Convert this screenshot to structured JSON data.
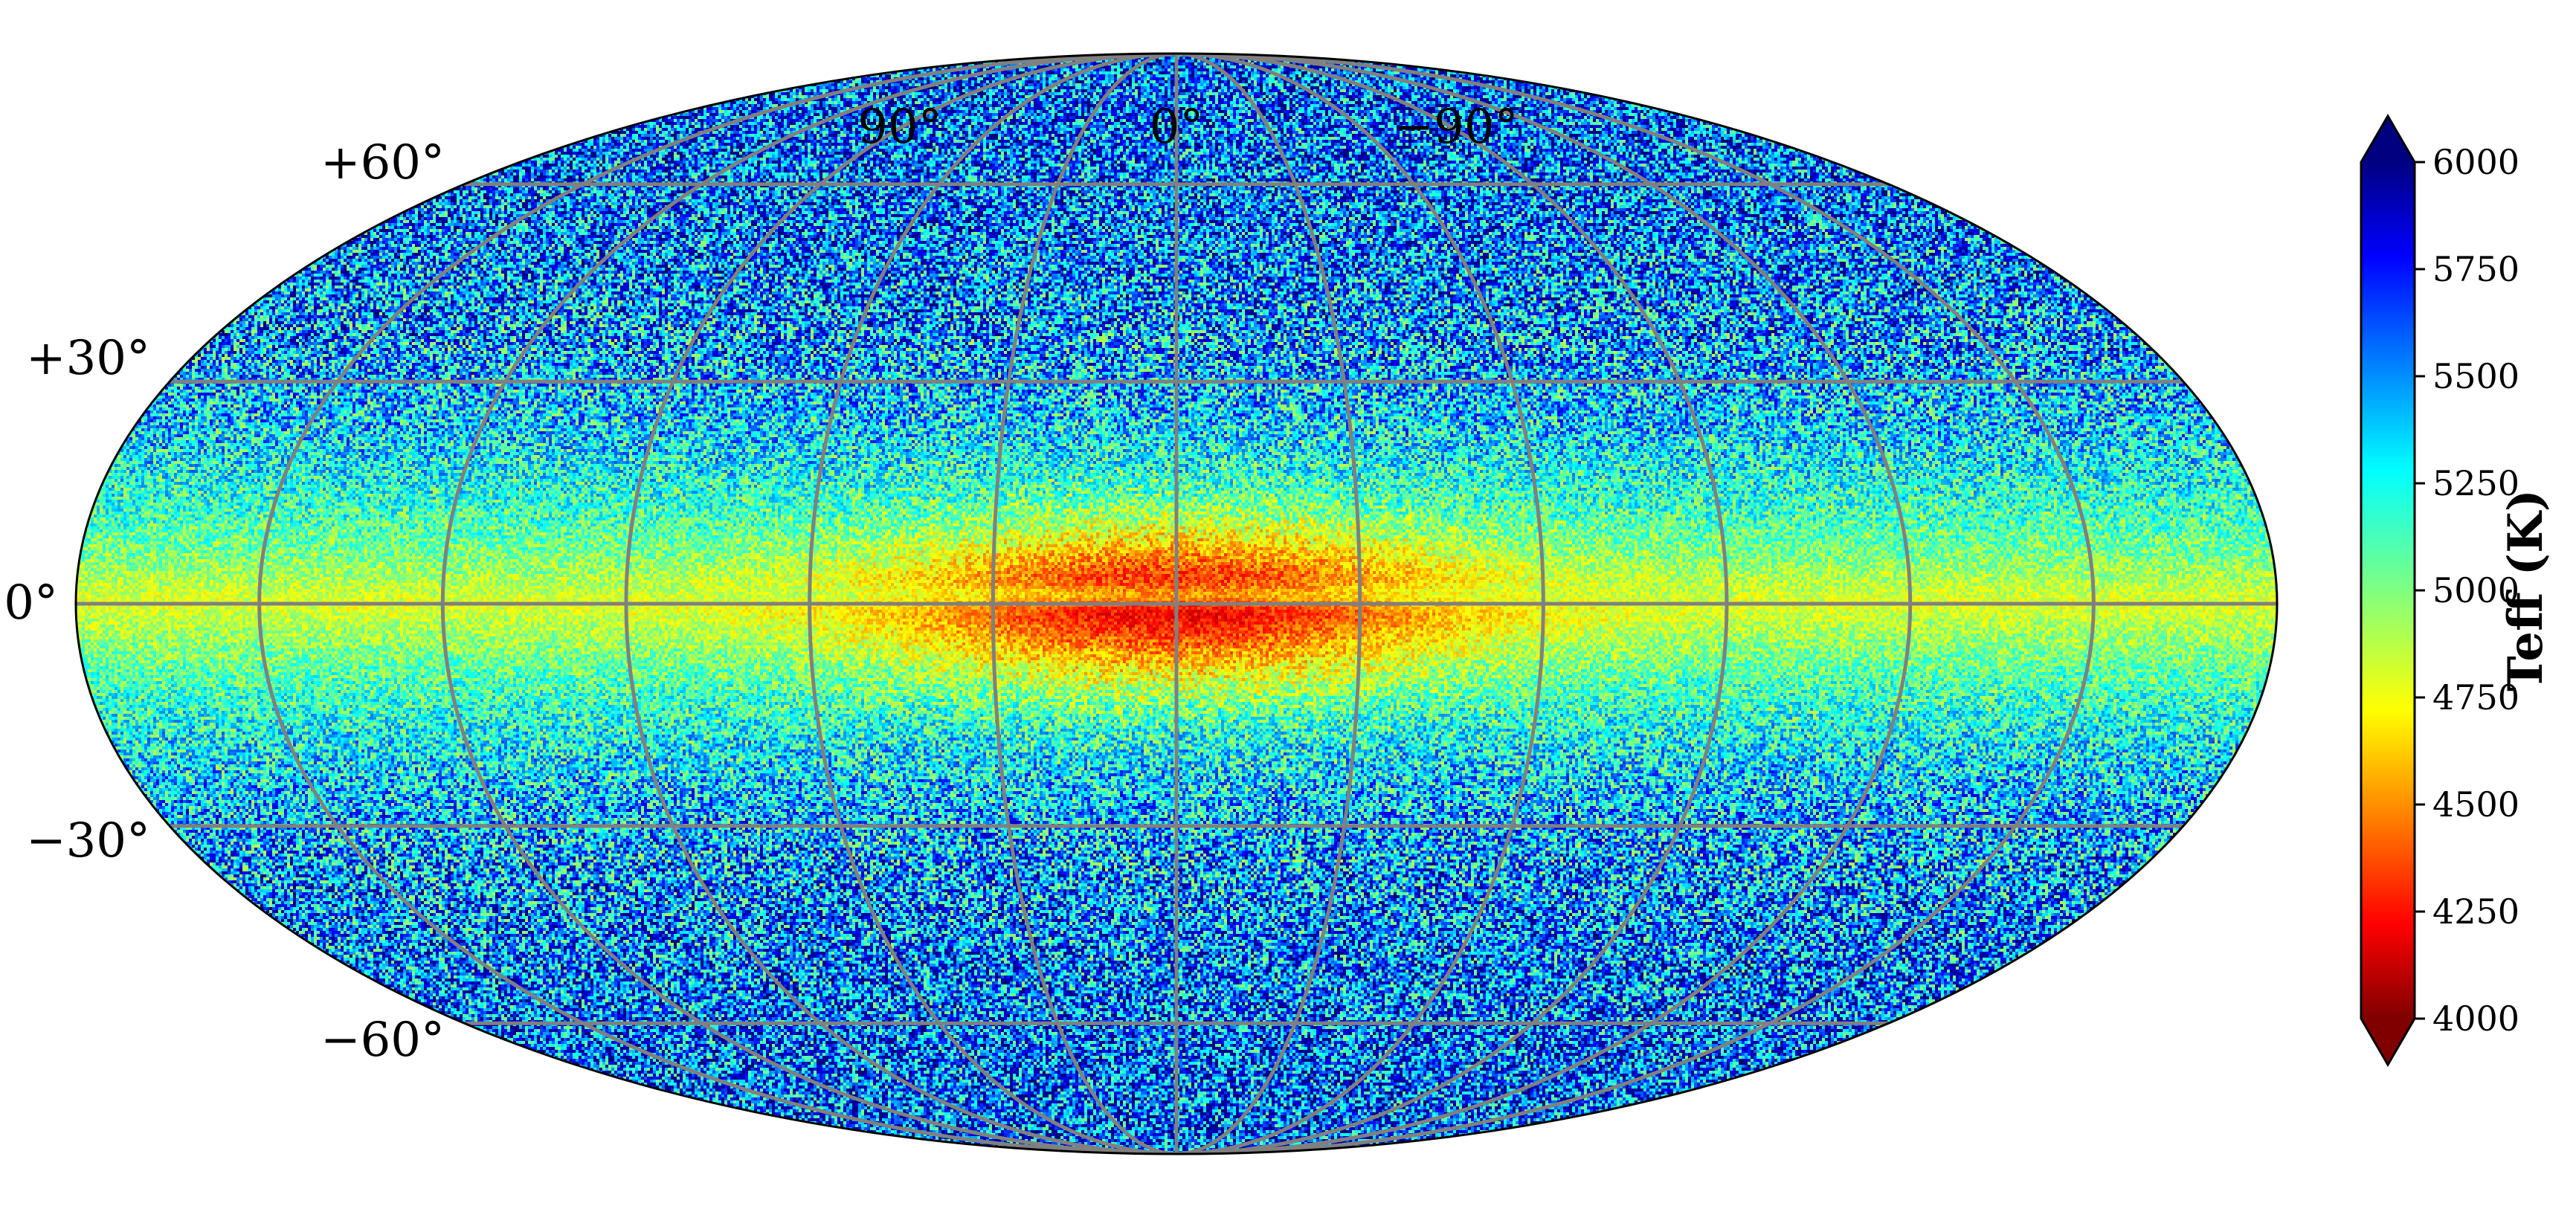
{
  "chart_data": {
    "type": "heatmap",
    "projection": "mollweide",
    "title": "",
    "xlabel": "",
    "ylabel": "",
    "longitude_tick_labels": [
      "90°",
      "0°",
      "−90°"
    ],
    "latitude_tick_labels": [
      "+60°",
      "+30°",
      "0°",
      "−30°",
      "−60°"
    ],
    "longitude_grid_deg": [
      150,
      120,
      90,
      60,
      30,
      0,
      -30,
      -60,
      -90,
      -120,
      -150
    ],
    "latitude_grid_deg": [
      60,
      30,
      0,
      -30,
      -60
    ],
    "grid": true,
    "grid_color": "#808080",
    "colormap": "jet",
    "colorbar": {
      "label": "Teff (K)",
      "range": [
        4000,
        6000
      ],
      "extend": "both",
      "ticks": [
        4000,
        4250,
        4500,
        4750,
        5000,
        5250,
        5500,
        5750,
        6000
      ],
      "tick_labels": [
        "4000",
        "4250",
        "4500",
        "4750",
        "5000",
        "5250",
        "5500",
        "5750",
        "6000"
      ],
      "placement": "right"
    },
    "pattern": {
      "high_latitude_teff_K": 5600,
      "mid_latitude_teff_K": 5100,
      "near_plane_teff_K": 4800,
      "bulge_core_teff_K": 4300,
      "bulge_extent_longitude_deg": [
        -60,
        60
      ],
      "bulge_extent_latitude_deg": [
        -15,
        15
      ],
      "dust_lane_latitude_deg": 1
    }
  }
}
